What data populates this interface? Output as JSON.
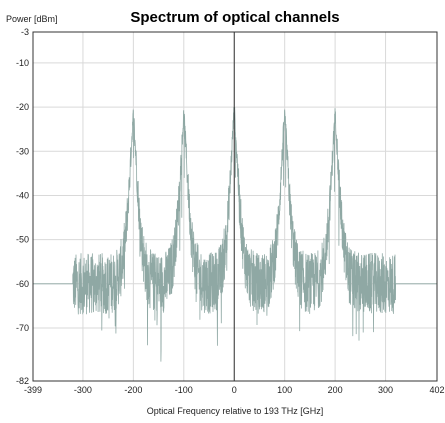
{
  "chart_data": {
    "type": "line",
    "title": "Spectrum of optical channels",
    "xlabel": "Optical Frequency relative to 193 THz [GHz]",
    "ylabel": "Power [dBm]",
    "xlim": [
      -399,
      402
    ],
    "ylim": [
      -82,
      -3
    ],
    "x_ticks": [
      -399,
      -300,
      -200,
      -100,
      0,
      100,
      200,
      300,
      402
    ],
    "y_ticks": [
      -3,
      -10,
      -20,
      -30,
      -40,
      -50,
      -60,
      -70,
      -82
    ],
    "grid": true,
    "series_color": "#8fa8a4",
    "series": [
      {
        "values_description_free": true,
        "channels": [
          {
            "center": -200,
            "peak": -22
          },
          {
            "center": -100,
            "peak": -22
          },
          {
            "center": 0,
            "peak": -21
          },
          {
            "center": 100,
            "peak": -22
          },
          {
            "center": 200,
            "peak": -22
          }
        ],
        "noise_floor": -60,
        "data_range": [
          -320,
          320
        ],
        "edge_level": -60
      }
    ]
  }
}
